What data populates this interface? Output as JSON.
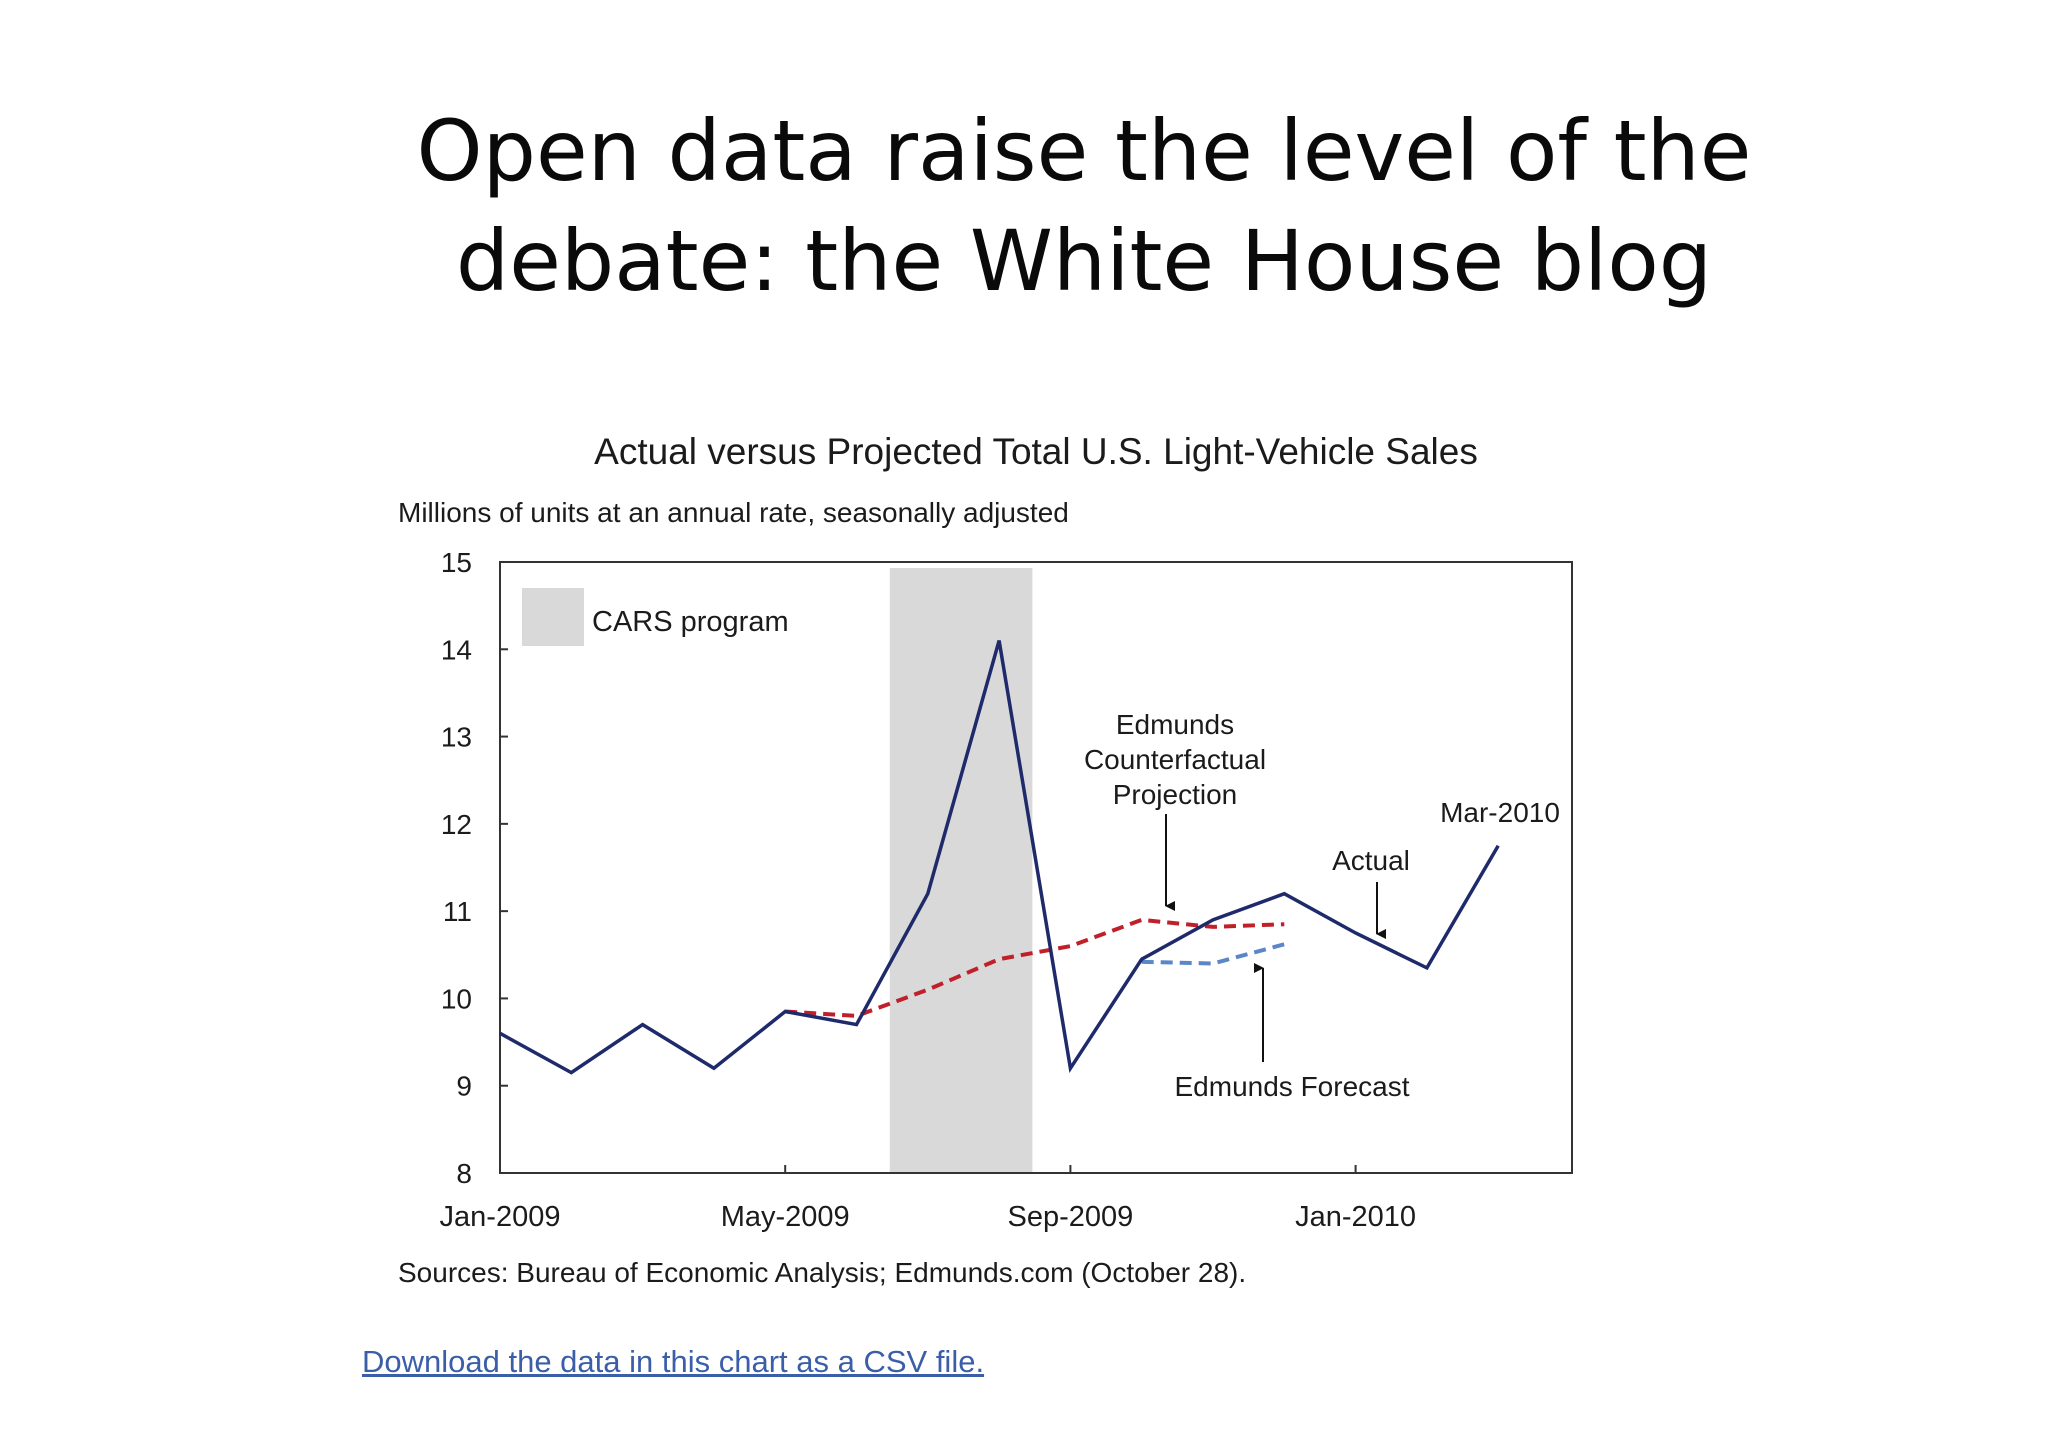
{
  "slide": {
    "title_line1": "Open data raise the level of the",
    "title_line2": "debate: the White House blog"
  },
  "link": {
    "text": "Download the data in this chart as a CSV file."
  },
  "chart_data": {
    "type": "line",
    "title": "Actual versus Projected Total U.S. Light-Vehicle Sales",
    "ylabel": "Millions of units at an annual rate, seasonally adjusted",
    "xlabel": "",
    "source": "Sources: Bureau of Economic Analysis; Edmunds.com (October 28).",
    "ylim": [
      8,
      15
    ],
    "yticks": [
      8,
      9,
      10,
      11,
      12,
      13,
      14,
      15
    ],
    "x_range": [
      "2009-01",
      "2010-04"
    ],
    "xticks": [
      {
        "x": "2009-01",
        "label": "Jan-2009"
      },
      {
        "x": "2009-05",
        "label": "May-2009"
      },
      {
        "x": "2009-09",
        "label": "Sep-2009"
      },
      {
        "x": "2010-01",
        "label": "Jan-2010"
      }
    ],
    "shaded_region": {
      "label": "CARS program",
      "x_start": "2009-06-15",
      "x_end": "2009-08-15",
      "color": "#d9d9d9"
    },
    "series": [
      {
        "name": "Actual",
        "color": "#1f2a6b",
        "style": "solid",
        "x": [
          "2009-01",
          "2009-02",
          "2009-03",
          "2009-04",
          "2009-05",
          "2009-06",
          "2009-07",
          "2009-08",
          "2009-09",
          "2009-10",
          "2009-11",
          "2009-12",
          "2010-01",
          "2010-02",
          "2010-03"
        ],
        "values": [
          9.6,
          9.15,
          9.7,
          9.2,
          9.85,
          9.7,
          11.2,
          14.1,
          9.2,
          10.45,
          10.9,
          11.2,
          10.75,
          10.35,
          11.75
        ]
      },
      {
        "name": "Edmunds Counterfactual Projection",
        "color": "#c0202a",
        "style": "dashed",
        "x": [
          "2009-05",
          "2009-06",
          "2009-07",
          "2009-08",
          "2009-09",
          "2009-10",
          "2009-11",
          "2009-12"
        ],
        "values": [
          9.85,
          9.8,
          10.1,
          10.45,
          10.6,
          10.9,
          10.82,
          10.85
        ]
      },
      {
        "name": "Edmunds Forecast",
        "color": "#5b86c8",
        "style": "dashed",
        "x": [
          "2009-10",
          "2009-11",
          "2009-12"
        ],
        "values": [
          10.42,
          10.4,
          10.62
        ]
      }
    ],
    "annotations": [
      {
        "text": "Edmunds\nCounterfactual\nProjection",
        "points_to": "Edmunds Counterfactual Projection",
        "arrow": "down"
      },
      {
        "text": "Actual",
        "points_to": "Actual",
        "arrow": "down"
      },
      {
        "text": "Edmunds Forecast",
        "points_to": "Edmunds Forecast",
        "arrow": "up"
      },
      {
        "text": "Mar-2010",
        "points_to": "Actual",
        "arrow": "none"
      }
    ],
    "legend_position": "top-left",
    "grid": false
  }
}
